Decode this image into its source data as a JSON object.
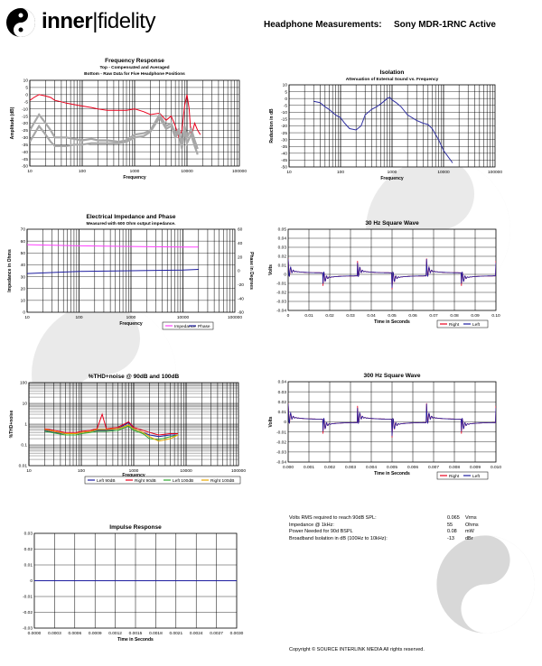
{
  "header": {
    "brand_bold": "inner",
    "brand_thin": "fidelity",
    "title": "Headphone Measurements:",
    "model": "Sony MDR-1RNC Active"
  },
  "stats": {
    "rows": [
      {
        "label": "Volts RMS required to reach 90dB SPL:",
        "value": "0.065",
        "unit": "Vrms"
      },
      {
        "label": "Impedance @ 1kHz:",
        "value": "55",
        "unit": "Ohms"
      },
      {
        "label": "Power Needed for 90d BSPL",
        "value": "0.08",
        "unit": "mW"
      },
      {
        "label": "Broadband Isolation in dB (100Hz to 10kHz):",
        "value": "-13",
        "unit": "dBr"
      }
    ]
  },
  "copyright": "Copyright © SOURCE INTERLINK MEDIA All rights reserved.",
  "colors": {
    "red": "#e8001c",
    "blue": "#1e1ea0",
    "magenta": "#ff40ff",
    "gray": "#a8a8a8",
    "green": "#2ea82e",
    "yellow": "#e8a800",
    "isolation": "#3030a0"
  },
  "chart_data": [
    {
      "id": "fr",
      "type": "line",
      "title": "Frequency Response",
      "subtitle": "Top -  Compensated and Averaged",
      "subtitle2": "Bottom - Raw Data for Five Headphone Positions",
      "xlabel": "Frequency",
      "ylabel": "Amplitude (dB)",
      "xscale": "log",
      "xlim": [
        10,
        100000
      ],
      "ylim": [
        -50,
        10
      ],
      "xticks": [
        "10",
        "100",
        "1000",
        "10000",
        "100000"
      ],
      "yticks": [
        "10",
        "5",
        "0",
        "-5",
        "-10",
        "-15",
        "-20",
        "-25",
        "-30",
        "-35",
        "-40",
        "-45",
        "-50"
      ],
      "series": [
        {
          "color": "#e8001c",
          "x": [
            10,
            12,
            15,
            20,
            25,
            30,
            40,
            50,
            70,
            100,
            150,
            200,
            300,
            500,
            700,
            1000,
            1500,
            2000,
            3000,
            4000,
            5000,
            6000,
            7000,
            8000,
            9000,
            10000,
            11000,
            12000,
            14000,
            16000,
            18000
          ],
          "y": [
            -4,
            -2,
            0,
            -1,
            -2,
            -4,
            -5,
            -6,
            -7,
            -8,
            -9,
            -10,
            -11,
            -11,
            -11,
            -10,
            -12,
            -14,
            -13,
            -18,
            -15,
            -22,
            -30,
            -25,
            -8,
            0,
            -10,
            -30,
            -20,
            -25,
            -28
          ]
        },
        {
          "color": "#a8a8a8",
          "x": [
            10,
            12,
            15,
            20,
            25,
            30,
            40,
            50,
            70,
            100,
            150,
            200,
            300,
            500,
            700,
            1000,
            1500,
            2000,
            3000,
            4000,
            5000,
            6000,
            7000,
            8000,
            9000,
            10000,
            12000,
            14000,
            16000
          ],
          "y": [
            -25,
            -20,
            -14,
            -20,
            -25,
            -30,
            -30,
            -30,
            -31,
            -32,
            -31,
            -32,
            -32,
            -33,
            -32,
            -28,
            -27,
            -25,
            -14,
            -22,
            -20,
            -28,
            -24,
            -35,
            -22,
            -30,
            -24,
            -32,
            -38
          ]
        },
        {
          "color": "#a8a8a8",
          "x": [
            10,
            12,
            15,
            20,
            25,
            30,
            40,
            50,
            70,
            100,
            150,
            200,
            300,
            500,
            700,
            1000,
            1500,
            2000,
            3000,
            4000,
            5000,
            6000,
            7000,
            8000,
            9000,
            10000,
            12000,
            14000,
            16000
          ],
          "y": [
            -33,
            -28,
            -22,
            -28,
            -33,
            -36,
            -36,
            -36,
            -35,
            -35,
            -34,
            -34,
            -34,
            -34,
            -33,
            -30,
            -29,
            -26,
            -16,
            -24,
            -22,
            -30,
            -26,
            -38,
            -25,
            -34,
            -28,
            -36,
            -42
          ]
        }
      ]
    },
    {
      "id": "iso",
      "type": "line",
      "title": "Isolation",
      "subtitle": "Attenuation of External Sound vs. Frequency",
      "xlabel": "Frequency",
      "ylabel": "Reduction in dB",
      "xscale": "log",
      "xlim": [
        10,
        100000
      ],
      "ylim": [
        -50,
        10
      ],
      "xticks": [
        "10",
        "100",
        "1000",
        "10000",
        "100000"
      ],
      "yticks": [
        "10",
        "5",
        "0",
        "-5",
        "-10",
        "-15",
        "-20",
        "-25",
        "-30",
        "-35",
        "-40",
        "-45",
        "-50"
      ],
      "series": [
        {
          "color": "#3030a0",
          "x": [
            30,
            40,
            50,
            60,
            80,
            100,
            120,
            150,
            200,
            250,
            300,
            400,
            500,
            600,
            700,
            800,
            900,
            1000,
            1200,
            1500,
            2000,
            3000,
            4000,
            5000,
            6000,
            8000,
            10000,
            12000,
            15000
          ],
          "y": [
            -2,
            -3,
            -6,
            -8,
            -12,
            -14,
            -18,
            -22,
            -23,
            -20,
            -12,
            -8,
            -6,
            -4,
            -2,
            0,
            1,
            -1,
            -3,
            -6,
            -12,
            -16,
            -18,
            -19,
            -22,
            -30,
            -38,
            -42,
            -47
          ]
        }
      ]
    },
    {
      "id": "imp",
      "type": "line",
      "title": "Electrical Impedance and Phase",
      "subtitle": "Measured with 600 Ohm output impedance.",
      "xlabel": "Frequency",
      "ylabel": "Impedance in Ohms",
      "ylabel2": "Phase in Degrees",
      "xscale": "log",
      "xlim": [
        10,
        100000
      ],
      "ylim": [
        0,
        70
      ],
      "ylim2": [
        -60,
        60
      ],
      "xticks": [
        "10",
        "100",
        "1000",
        "10000",
        "100000"
      ],
      "yticks": [
        "70",
        "60",
        "50",
        "40",
        "30",
        "20",
        "10",
        "0"
      ],
      "yticks2": [
        "60",
        "40",
        "20",
        "0",
        "-20",
        "-40",
        "-60"
      ],
      "legend": [
        "Impedance",
        "Phase"
      ],
      "series": [
        {
          "name": "Impedance",
          "color": "#ff40ff",
          "x": [
            10,
            100,
            1000,
            10000,
            20000
          ],
          "y": [
            57,
            56,
            55.5,
            55,
            55
          ]
        },
        {
          "name": "Phase",
          "color": "#1e1ea0",
          "x": [
            10,
            100,
            1000,
            10000,
            20000
          ],
          "y2": [
            -4,
            -1,
            0,
            1,
            2
          ]
        }
      ]
    },
    {
      "id": "sq30",
      "type": "line",
      "title": "30 Hz Square Wave",
      "xlabel": "Time in Seconds",
      "ylabel": "Volts",
      "xlim": [
        0,
        0.1
      ],
      "ylim": [
        -0.04,
        0.05
      ],
      "xticks": [
        "0",
        "0.01",
        "0.02",
        "0.03",
        "0.04",
        "0.05",
        "0.06",
        "0.07",
        "0.08",
        "0.09",
        "0.10"
      ],
      "yticks": [
        "0.05",
        "0.04",
        "0.03",
        "0.02",
        "0.01",
        "0",
        "-0.01",
        "-0.02",
        "-0.03",
        "-0.04"
      ],
      "legend": [
        "Right",
        "Left"
      ],
      "period": 0.0333,
      "amplitude": 0.008
    },
    {
      "id": "thd",
      "type": "line",
      "title": "%THD+noise @ 90dB and 100dB",
      "xlabel": "Frequency",
      "ylabel": "%THD+noise",
      "xscale": "log",
      "yscale": "log",
      "xlim": [
        10,
        100000
      ],
      "ylim": [
        0.01,
        100
      ],
      "xticks": [
        "10",
        "100",
        "1000",
        "10000",
        "100000"
      ],
      "yticks": [
        "100",
        "10",
        "1",
        "0.1",
        "0.01"
      ],
      "legend": [
        "Left 90dB",
        "Right 90dB",
        "Left 100dB",
        "Right 100dB"
      ],
      "series": [
        {
          "name": "Left 90dB",
          "color": "#1e1ea0",
          "x": [
            20,
            30,
            50,
            80,
            100,
            150,
            200,
            300,
            500,
            800,
            1000,
            1500,
            2000,
            3000,
            5000,
            7000
          ],
          "y": [
            0.5,
            0.4,
            0.35,
            0.35,
            0.4,
            0.45,
            0.5,
            0.5,
            0.6,
            1.2,
            0.6,
            0.4,
            0.3,
            0.25,
            0.3,
            0.3
          ]
        },
        {
          "name": "Right 90dB",
          "color": "#e8001c",
          "x": [
            20,
            30,
            50,
            80,
            100,
            150,
            200,
            250,
            300,
            500,
            800,
            1000,
            1500,
            2000,
            3000,
            5000,
            7000
          ],
          "y": [
            0.6,
            0.5,
            0.4,
            0.4,
            0.45,
            0.5,
            0.6,
            3,
            0.6,
            0.7,
            1.3,
            0.7,
            0.5,
            0.4,
            0.3,
            0.35,
            0.35
          ]
        },
        {
          "name": "Left 100dB",
          "color": "#2ea82e",
          "x": [
            20,
            30,
            50,
            80,
            100,
            150,
            200,
            300,
            500,
            800,
            1000,
            1500,
            2000,
            3000,
            5000,
            7000
          ],
          "y": [
            0.45,
            0.38,
            0.3,
            0.3,
            0.35,
            0.4,
            0.45,
            0.45,
            0.5,
            0.8,
            0.5,
            0.35,
            0.2,
            0.18,
            0.25,
            0.3
          ]
        },
        {
          "name": "Right 100dB",
          "color": "#e8a800",
          "x": [
            20,
            30,
            50,
            80,
            100,
            150,
            200,
            300,
            500,
            800,
            1000,
            1500,
            2000,
            3000,
            5000,
            7000
          ],
          "y": [
            0.55,
            0.45,
            0.35,
            0.35,
            0.4,
            0.45,
            0.55,
            0.55,
            0.6,
            0.9,
            0.6,
            0.4,
            0.25,
            0.15,
            0.2,
            0.3
          ]
        }
      ]
    },
    {
      "id": "sq300",
      "type": "line",
      "title": "300 Hz Square Wave",
      "xlabel": "Time in Seconds",
      "ylabel": "Volts",
      "xlim": [
        0,
        0.01
      ],
      "ylim": [
        -0.04,
        0.04
      ],
      "xticks": [
        "0.000",
        "0.001",
        "0.002",
        "0.003",
        "0.004",
        "0.005",
        "0.006",
        "0.007",
        "0.008",
        "0.009",
        "0.010"
      ],
      "yticks": [
        "0.04",
        "0.03",
        "0.02",
        "0.01",
        "0",
        "-0.01",
        "-0.02",
        "-0.03",
        "-0.04"
      ],
      "legend": [
        "Right",
        "Left"
      ],
      "period": 0.00333,
      "amplitude": 0.008
    },
    {
      "id": "imprs",
      "type": "line",
      "title": "Impulse Response",
      "xlabel": "Time in Seconds",
      "ylabel": "",
      "xlim": [
        0,
        0.003
      ],
      "ylim": [
        -0.03,
        0.03
      ],
      "xticks": [
        "0.0000",
        "0.0003",
        "0.0006",
        "0.0009",
        "0.0012",
        "0.0015",
        "0.0018",
        "0.0021",
        "0.0024",
        "0.0027",
        "0.0030"
      ],
      "yticks": [
        "0.03",
        "0.02",
        "0.01",
        "0",
        "-0.01",
        "-0.02",
        "-0.03"
      ],
      "series": [
        {
          "color": "#1e1ea0",
          "x": [
            0,
            0.003
          ],
          "y": [
            0,
            0
          ]
        }
      ]
    }
  ]
}
